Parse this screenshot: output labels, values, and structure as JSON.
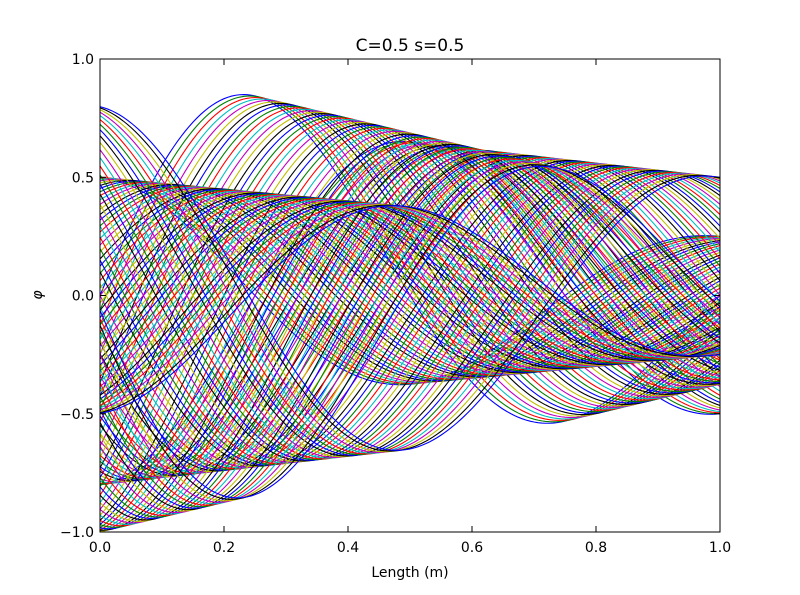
{
  "chart_data": {
    "type": "line",
    "title": "C=0.5 s=0.5",
    "xlabel": "Length (m)",
    "ylabel": "φ",
    "xlim": [
      0.0,
      1.0
    ],
    "ylim": [
      -1.0,
      1.0
    ],
    "x_ticks": [
      0.0,
      0.2,
      0.4,
      0.6,
      0.8,
      1.0
    ],
    "x_tick_labels": [
      "0.0",
      "0.2",
      "0.4",
      "0.6",
      "0.8",
      "1.0"
    ],
    "y_ticks": [
      -1.0,
      -0.5,
      0.0,
      0.5,
      1.0
    ],
    "y_tick_labels": [
      "−1.0",
      "−0.5",
      "0.0",
      "0.5",
      "1.0"
    ],
    "grid": false,
    "legend": "none",
    "colors": [
      "#0000ff",
      "#008000",
      "#ff0000",
      "#00bfbf",
      "#bf00bf",
      "#bfbf00",
      "#000000"
    ],
    "series_family": {
      "count": 50,
      "waves": [
        {
          "wavelength": 1.0,
          "amplitude_start": 1.0,
          "amplitude_end": 0.375,
          "crest_start": 0.25,
          "crest_step": 0.01
        },
        {
          "wavelength": 1.0,
          "amplitude_start": 0.5,
          "amplitude_end": 0.25,
          "crest_start": 0.0,
          "crest_step": 0.01
        },
        {
          "wavelength": 1.0,
          "amplitude_start": 0.8,
          "amplitude_end": 0.5,
          "crest_start": 0.5,
          "crest_step": 0.01
        }
      ]
    }
  }
}
